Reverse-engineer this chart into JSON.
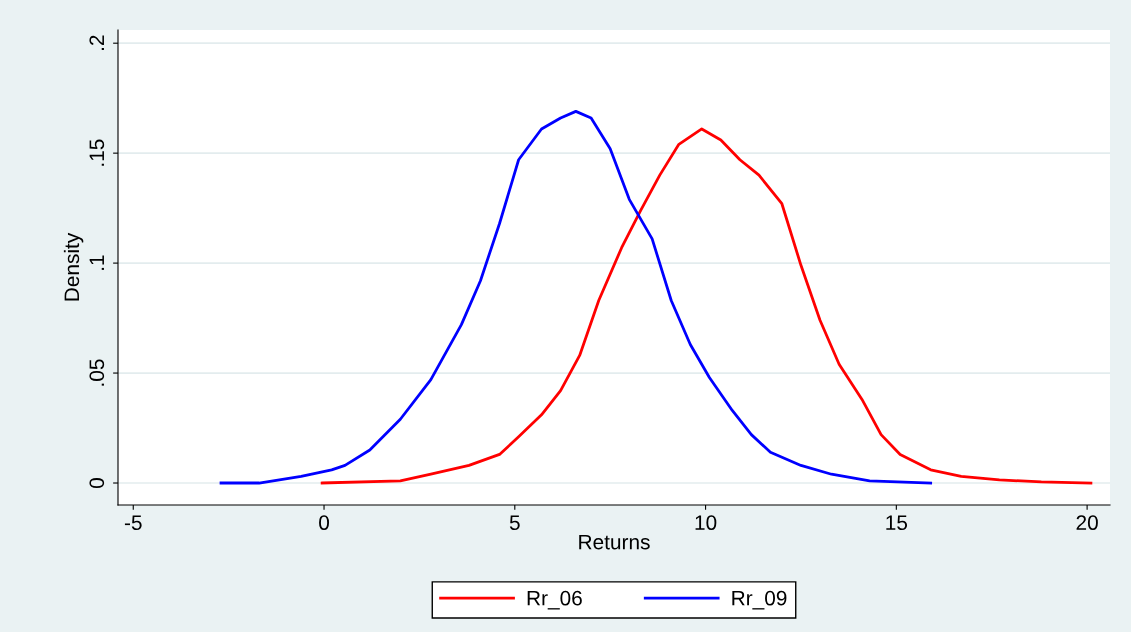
{
  "chart_data": {
    "type": "line",
    "xlabel": "Returns",
    "ylabel": "Density",
    "xlim": [
      -5.4,
      20.6
    ],
    "ylim": [
      -0.01,
      0.206
    ],
    "xticks": [
      -5,
      0,
      5,
      10,
      15,
      20
    ],
    "yticks": [
      {
        "value": 0,
        "label": "0"
      },
      {
        "value": 0.05,
        "label": ".05"
      },
      {
        "value": 0.1,
        "label": ".1"
      },
      {
        "value": 0.15,
        "label": ".15"
      },
      {
        "value": 0.2,
        "label": ".2"
      }
    ],
    "grid": "y",
    "legend": "bottom",
    "marker": "none",
    "line_style": "solid",
    "series": [
      {
        "name": "Rr_06",
        "color": "#ff0000",
        "x": [
          -0.05,
          2.0,
          2.8,
          3.8,
          4.6,
          5.1,
          5.7,
          6.2,
          6.7,
          7.2,
          7.8,
          8.3,
          8.8,
          9.3,
          9.9,
          10.4,
          10.9,
          11.4,
          12.0,
          12.5,
          13.0,
          13.5,
          14.1,
          14.6,
          15.1,
          15.9,
          16.7,
          17.7,
          18.8,
          20.1
        ],
        "values": [
          0,
          0.001,
          0.004,
          0.008,
          0.013,
          0.021,
          0.031,
          0.042,
          0.058,
          0.083,
          0.107,
          0.124,
          0.14,
          0.154,
          0.161,
          0.156,
          0.147,
          0.14,
          0.127,
          0.099,
          0.074,
          0.054,
          0.038,
          0.022,
          0.013,
          0.006,
          0.003,
          0.0014,
          0.0005,
          0
        ]
      },
      {
        "name": "Rr_09",
        "color": "#0000ff",
        "x": [
          -2.7,
          -1.7,
          -0.6,
          0.2,
          0.55,
          1.2,
          2.0,
          2.8,
          3.6,
          4.1,
          4.6,
          5.1,
          5.7,
          6.2,
          6.6,
          7.0,
          7.5,
          8.0,
          8.6,
          9.1,
          9.6,
          10.1,
          10.7,
          11.2,
          11.7,
          12.5,
          13.3,
          14.3,
          15.9
        ],
        "values": [
          0,
          0,
          0.003,
          0.006,
          0.008,
          0.015,
          0.029,
          0.047,
          0.072,
          0.092,
          0.118,
          0.147,
          0.161,
          0.166,
          0.169,
          0.166,
          0.152,
          0.129,
          0.111,
          0.083,
          0.063,
          0.048,
          0.033,
          0.022,
          0.014,
          0.008,
          0.004,
          0.001,
          0
        ]
      }
    ]
  }
}
